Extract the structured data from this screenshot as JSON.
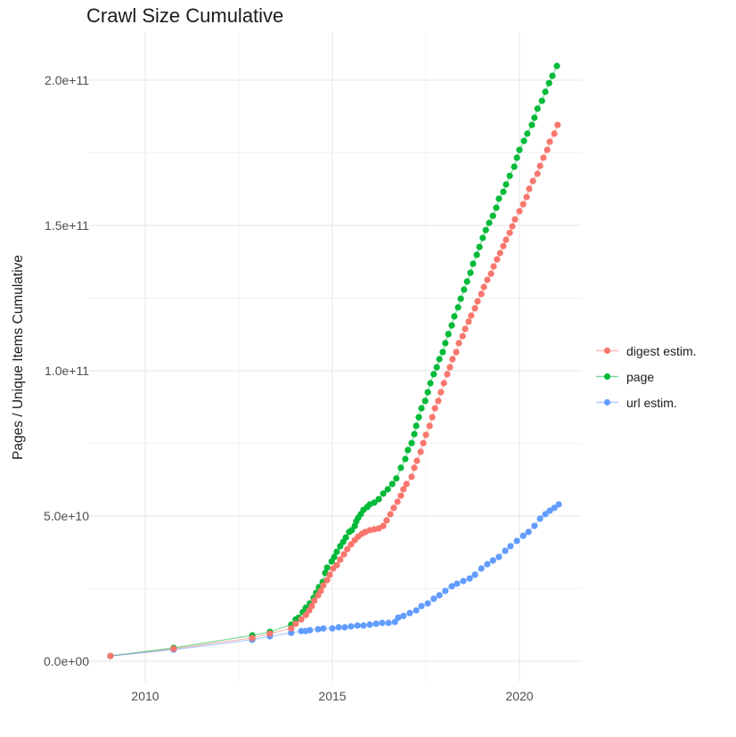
{
  "title": "Crawl Size Cumulative",
  "legend": {
    "items": [
      {
        "label": "digest estim.",
        "color": "#F8766D"
      },
      {
        "label": "page",
        "color": "#00BA38"
      },
      {
        "label": "url estim.",
        "color": "#619CFF"
      }
    ]
  },
  "chart_data": {
    "type": "line",
    "title": "Crawl Size Cumulative",
    "xlabel": "",
    "ylabel": "Pages / Unique Items Cumulative",
    "x_unit": "year",
    "y_values_in": "billions (1e9)",
    "xlim": [
      2008.7,
      2021.65
    ],
    "ylim": [
      0,
      215000000000
    ],
    "grid": true,
    "legend_position": "right",
    "x_ticks": [
      {
        "label": "2010",
        "year": 2010
      },
      {
        "label": "2015",
        "year": 2015
      },
      {
        "label": "2020",
        "year": 2020
      }
    ],
    "x_minor_ticks": [
      2012.5,
      2017.5
    ],
    "y_ticks": [
      {
        "label": "0.0e+00",
        "billions": 0
      },
      {
        "label": "5.0e+10",
        "billions": 50
      },
      {
        "label": "1.0e+11",
        "billions": 100
      },
      {
        "label": "1.5e+11",
        "billions": 150
      },
      {
        "label": "2.0e+11",
        "billions": 200
      }
    ],
    "y_minor_ticks": [
      25,
      75,
      125,
      175
    ],
    "series": [
      {
        "name": "digest estim.",
        "color": "#F8766D",
        "points": [
          [
            2009.07,
            1.8
          ],
          [
            2010.76,
            4.3
          ],
          [
            2012.86,
            8.0
          ],
          [
            2013.33,
            9.5
          ],
          [
            2013.9,
            11.3
          ],
          [
            2014.02,
            12.9
          ],
          [
            2014.17,
            14.4
          ],
          [
            2014.29,
            15.9
          ],
          [
            2014.38,
            17.5
          ],
          [
            2014.45,
            19.0
          ],
          [
            2014.52,
            20.9
          ],
          [
            2014.62,
            22.7
          ],
          [
            2014.69,
            24.2
          ],
          [
            2014.76,
            26.1
          ],
          [
            2014.86,
            27.9
          ],
          [
            2014.93,
            29.8
          ],
          [
            2015.02,
            31.9
          ],
          [
            2015.12,
            33.1
          ],
          [
            2015.21,
            35.0
          ],
          [
            2015.31,
            36.8
          ],
          [
            2015.4,
            38.6
          ],
          [
            2015.5,
            40.2
          ],
          [
            2015.6,
            41.7
          ],
          [
            2015.69,
            42.9
          ],
          [
            2015.79,
            43.9
          ],
          [
            2015.88,
            44.5
          ],
          [
            2016.0,
            45.1
          ],
          [
            2016.12,
            45.4
          ],
          [
            2016.24,
            45.7
          ],
          [
            2016.36,
            46.6
          ],
          [
            2016.45,
            48.5
          ],
          [
            2016.55,
            50.6
          ],
          [
            2016.64,
            52.8
          ],
          [
            2016.74,
            54.9
          ],
          [
            2016.83,
            57.0
          ],
          [
            2016.9,
            59.2
          ],
          [
            2016.98,
            61.0
          ],
          [
            2017.12,
            63.5
          ],
          [
            2017.19,
            66.6
          ],
          [
            2017.26,
            69.0
          ],
          [
            2017.36,
            72.1
          ],
          [
            2017.43,
            75.1
          ],
          [
            2017.5,
            77.9
          ],
          [
            2017.6,
            81.0
          ],
          [
            2017.67,
            84.0
          ],
          [
            2017.74,
            87.1
          ],
          [
            2017.83,
            89.6
          ],
          [
            2017.9,
            92.6
          ],
          [
            2017.98,
            95.7
          ],
          [
            2018.07,
            98.8
          ],
          [
            2018.14,
            101.2
          ],
          [
            2018.21,
            104.0
          ],
          [
            2018.31,
            106.4
          ],
          [
            2018.38,
            109.5
          ],
          [
            2018.48,
            111.9
          ],
          [
            2018.55,
            114.4
          ],
          [
            2018.64,
            116.9
          ],
          [
            2018.71,
            119.0
          ],
          [
            2018.81,
            121.5
          ],
          [
            2018.88,
            123.9
          ],
          [
            2018.98,
            126.4
          ],
          [
            2019.05,
            128.8
          ],
          [
            2019.14,
            131.3
          ],
          [
            2019.24,
            133.4
          ],
          [
            2019.31,
            135.9
          ],
          [
            2019.4,
            138.3
          ],
          [
            2019.48,
            140.5
          ],
          [
            2019.57,
            142.9
          ],
          [
            2019.64,
            145.1
          ],
          [
            2019.74,
            147.5
          ],
          [
            2019.81,
            149.7
          ],
          [
            2019.88,
            152.1
          ],
          [
            2020.0,
            154.9
          ],
          [
            2020.1,
            157.3
          ],
          [
            2020.19,
            159.8
          ],
          [
            2020.26,
            162.6
          ],
          [
            2020.36,
            165.3
          ],
          [
            2020.48,
            167.8
          ],
          [
            2020.55,
            170.5
          ],
          [
            2020.64,
            173.3
          ],
          [
            2020.74,
            176.0
          ],
          [
            2020.81,
            178.8
          ],
          [
            2020.93,
            181.6
          ],
          [
            2021.02,
            184.6
          ]
        ]
      },
      {
        "name": "page",
        "color": "#00BA38",
        "points": [
          [
            2009.07,
            1.8
          ],
          [
            2010.76,
            4.6
          ],
          [
            2012.86,
            8.9
          ],
          [
            2013.33,
            10.1
          ],
          [
            2013.9,
            12.6
          ],
          [
            2014.02,
            14.4
          ],
          [
            2014.1,
            15.0
          ],
          [
            2014.21,
            16.9
          ],
          [
            2014.29,
            18.4
          ],
          [
            2014.4,
            19.9
          ],
          [
            2014.5,
            21.8
          ],
          [
            2014.57,
            23.6
          ],
          [
            2014.64,
            25.5
          ],
          [
            2014.74,
            27.3
          ],
          [
            2014.81,
            30.4
          ],
          [
            2014.86,
            32.2
          ],
          [
            2014.98,
            34.4
          ],
          [
            2015.05,
            35.9
          ],
          [
            2015.12,
            37.7
          ],
          [
            2015.21,
            39.6
          ],
          [
            2015.29,
            41.1
          ],
          [
            2015.36,
            42.6
          ],
          [
            2015.45,
            44.5
          ],
          [
            2015.52,
            45.1
          ],
          [
            2015.6,
            46.6
          ],
          [
            2015.64,
            48.2
          ],
          [
            2015.69,
            49.4
          ],
          [
            2015.76,
            50.6
          ],
          [
            2015.83,
            52.1
          ],
          [
            2015.93,
            53.1
          ],
          [
            2016.0,
            54.0
          ],
          [
            2016.12,
            54.6
          ],
          [
            2016.24,
            55.8
          ],
          [
            2016.36,
            57.7
          ],
          [
            2016.48,
            59.2
          ],
          [
            2016.6,
            61.0
          ],
          [
            2016.71,
            62.9
          ],
          [
            2016.83,
            66.6
          ],
          [
            2016.95,
            69.6
          ],
          [
            2017.02,
            72.7
          ],
          [
            2017.12,
            75.1
          ],
          [
            2017.19,
            78.2
          ],
          [
            2017.24,
            81.0
          ],
          [
            2017.31,
            84.0
          ],
          [
            2017.38,
            87.1
          ],
          [
            2017.48,
            89.6
          ],
          [
            2017.55,
            92.6
          ],
          [
            2017.62,
            95.7
          ],
          [
            2017.71,
            98.8
          ],
          [
            2017.79,
            101.2
          ],
          [
            2017.86,
            104.0
          ],
          [
            2017.95,
            106.4
          ],
          [
            2018.02,
            109.5
          ],
          [
            2018.1,
            112.6
          ],
          [
            2018.19,
            115.6
          ],
          [
            2018.26,
            118.7
          ],
          [
            2018.36,
            121.8
          ],
          [
            2018.43,
            124.8
          ],
          [
            2018.52,
            127.9
          ],
          [
            2018.6,
            130.7
          ],
          [
            2018.69,
            133.7
          ],
          [
            2018.76,
            136.8
          ],
          [
            2018.86,
            139.9
          ],
          [
            2018.93,
            142.6
          ],
          [
            2019.02,
            145.7
          ],
          [
            2019.1,
            148.4
          ],
          [
            2019.19,
            150.9
          ],
          [
            2019.29,
            153.3
          ],
          [
            2019.38,
            156.1
          ],
          [
            2019.45,
            159.2
          ],
          [
            2019.57,
            161.6
          ],
          [
            2019.64,
            164.1
          ],
          [
            2019.74,
            167.1
          ],
          [
            2019.86,
            170.2
          ],
          [
            2019.93,
            173.3
          ],
          [
            2020.0,
            176.0
          ],
          [
            2020.12,
            179.1
          ],
          [
            2020.21,
            181.6
          ],
          [
            2020.33,
            184.6
          ],
          [
            2020.4,
            187.1
          ],
          [
            2020.48,
            190.2
          ],
          [
            2020.6,
            192.9
          ],
          [
            2020.69,
            196.0
          ],
          [
            2020.79,
            199.0
          ],
          [
            2020.88,
            201.5
          ],
          [
            2021.0,
            204.9
          ]
        ]
      },
      {
        "name": "url estim.",
        "color": "#619CFF",
        "points": [
          [
            2009.07,
            1.8
          ],
          [
            2010.76,
            4.0
          ],
          [
            2012.86,
            7.4
          ],
          [
            2013.33,
            8.6
          ],
          [
            2013.9,
            9.8
          ],
          [
            2014.17,
            10.4
          ],
          [
            2014.29,
            10.4
          ],
          [
            2014.4,
            10.7
          ],
          [
            2014.62,
            11.0
          ],
          [
            2014.76,
            11.3
          ],
          [
            2015.0,
            11.3
          ],
          [
            2015.17,
            11.7
          ],
          [
            2015.33,
            11.7
          ],
          [
            2015.5,
            12.0
          ],
          [
            2015.67,
            12.3
          ],
          [
            2015.83,
            12.3
          ],
          [
            2016.0,
            12.6
          ],
          [
            2016.17,
            12.9
          ],
          [
            2016.33,
            13.2
          ],
          [
            2016.5,
            13.2
          ],
          [
            2016.67,
            13.5
          ],
          [
            2016.76,
            15.0
          ],
          [
            2016.9,
            15.6
          ],
          [
            2017.07,
            16.6
          ],
          [
            2017.24,
            17.5
          ],
          [
            2017.38,
            19.0
          ],
          [
            2017.55,
            19.9
          ],
          [
            2017.71,
            21.5
          ],
          [
            2017.86,
            22.7
          ],
          [
            2018.02,
            24.2
          ],
          [
            2018.19,
            25.8
          ],
          [
            2018.33,
            26.7
          ],
          [
            2018.5,
            27.6
          ],
          [
            2018.67,
            28.5
          ],
          [
            2018.81,
            29.8
          ],
          [
            2018.98,
            31.9
          ],
          [
            2019.14,
            33.4
          ],
          [
            2019.29,
            34.7
          ],
          [
            2019.45,
            35.9
          ],
          [
            2019.62,
            38.0
          ],
          [
            2019.76,
            39.6
          ],
          [
            2019.93,
            41.4
          ],
          [
            2020.1,
            43.2
          ],
          [
            2020.24,
            44.5
          ],
          [
            2020.4,
            46.6
          ],
          [
            2020.55,
            49.1
          ],
          [
            2020.69,
            50.6
          ],
          [
            2020.81,
            51.8
          ],
          [
            2020.93,
            52.8
          ],
          [
            2021.05,
            54.0
          ]
        ]
      }
    ]
  }
}
